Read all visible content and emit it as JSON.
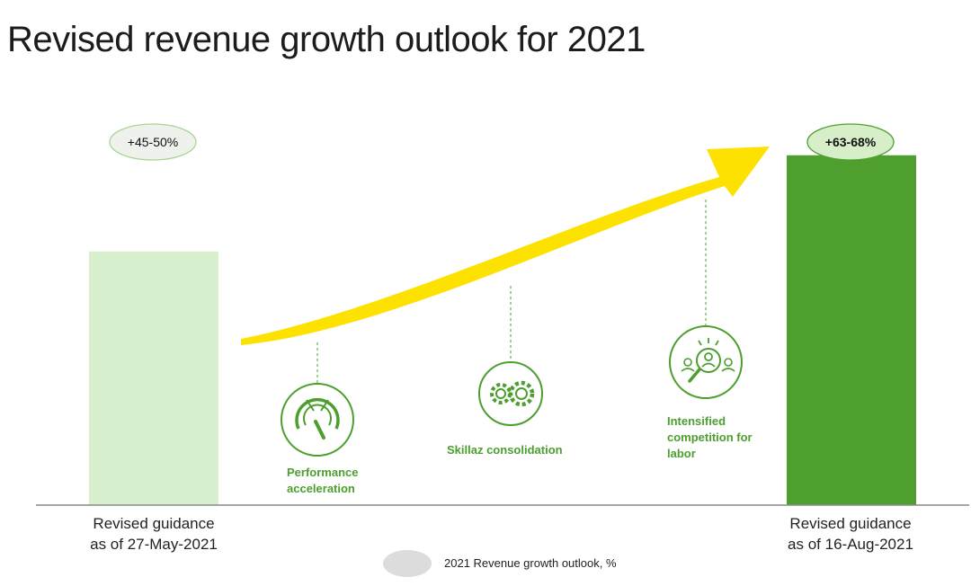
{
  "title": "Revised revenue growth outlook for 2021",
  "chart_data": {
    "type": "bar",
    "categories": [
      "Revised guidance as of 27-May-2021",
      "Revised guidance as of 16-Aug-2021"
    ],
    "category_lines": [
      [
        "Revised guidance",
        "as of 27-May-2021"
      ],
      [
        "Revised guidance",
        "as of 16-Aug-2021"
      ]
    ],
    "series": [
      {
        "values": [
          47.5,
          65.5
        ],
        "ranges": [
          [
            45,
            50
          ],
          [
            63,
            68
          ]
        ]
      }
    ],
    "data_labels": [
      "+45-50%",
      "+63-68%"
    ],
    "bar_colors": [
      "#d9f0cf",
      "#4f9f2f"
    ],
    "label_fill": [
      "#eef1ec",
      "#d6efc9"
    ],
    "label_stroke": [
      "#a8d596",
      "#4f9f2f"
    ],
    "label_bold": [
      false,
      true
    ],
    "ylim": [
      0,
      70
    ],
    "arrow_color": "#fde100",
    "drivers": [
      {
        "lines": [
          "Performance",
          "acceleration"
        ],
        "icon": "speedometer-icon"
      },
      {
        "lines": [
          "Skillaz consolidation"
        ],
        "icon": "gears-icon"
      },
      {
        "lines": [
          "Intensified",
          "competition for",
          "labor"
        ],
        "icon": "talent-search-icon"
      }
    ],
    "legend": {
      "text": "2021 Revenue growth outlook, %",
      "swatch_color": "#dcdcdc"
    },
    "accent_green": "#4c9f2e"
  }
}
